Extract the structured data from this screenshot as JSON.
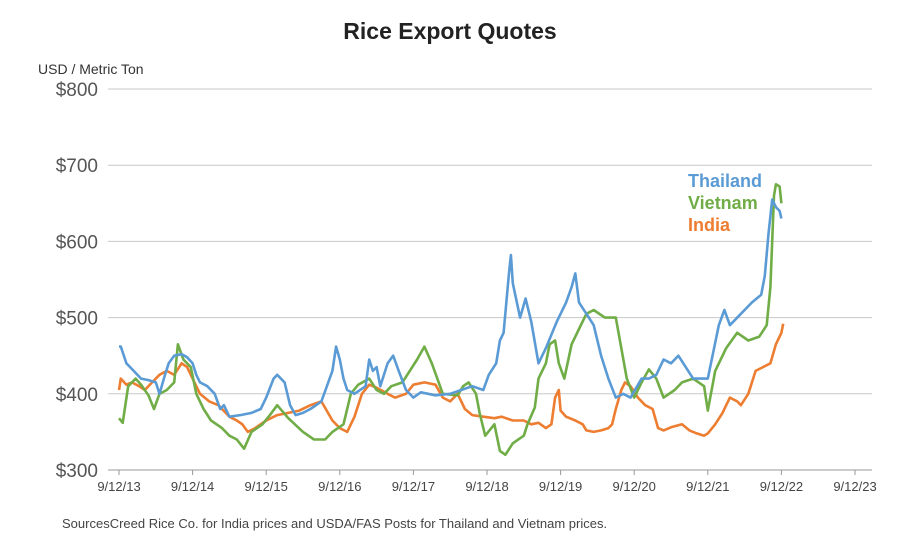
{
  "chart_data": {
    "type": "line",
    "title": "Rice Export Quotes",
    "ylabel": "USD / Metric Ton",
    "xlabel": "",
    "ylim": [
      300,
      800
    ],
    "yticks": [
      300,
      400,
      500,
      600,
      700,
      800
    ],
    "ytick_labels": [
      "$300",
      "$400",
      "$500",
      "$600",
      "$700",
      "$800"
    ],
    "xticks": [
      "9/12/13",
      "9/12/14",
      "9/12/15",
      "9/12/16",
      "9/12/17",
      "9/12/18",
      "9/12/19",
      "9/12/20",
      "9/12/21",
      "9/12/22",
      "9/12/23"
    ],
    "grid": "horizontal",
    "legend_placement": "top-right",
    "series": [
      {
        "name": "Thailand",
        "color": "#5b9bd5",
        "points": [
          [
            0,
            462
          ],
          [
            0.05,
            462
          ],
          [
            0.2,
            440
          ],
          [
            0.4,
            430
          ],
          [
            0.6,
            420
          ],
          [
            0.8,
            418
          ],
          [
            1.0,
            415
          ],
          [
            1.1,
            400
          ],
          [
            1.25,
            425
          ],
          [
            1.35,
            440
          ],
          [
            1.5,
            450
          ],
          [
            1.7,
            452
          ],
          [
            1.85,
            448
          ],
          [
            2.0,
            440
          ],
          [
            2.1,
            425
          ],
          [
            2.2,
            415
          ],
          [
            2.4,
            410
          ],
          [
            2.6,
            400
          ],
          [
            2.75,
            380
          ],
          [
            2.85,
            385
          ],
          [
            3.0,
            370
          ],
          [
            3.3,
            372
          ],
          [
            3.6,
            375
          ],
          [
            3.85,
            380
          ],
          [
            4.0,
            395
          ],
          [
            4.2,
            420
          ],
          [
            4.3,
            425
          ],
          [
            4.5,
            415
          ],
          [
            4.65,
            385
          ],
          [
            4.8,
            372
          ],
          [
            5.0,
            375
          ],
          [
            5.2,
            380
          ],
          [
            5.5,
            390
          ],
          [
            5.8,
            430
          ],
          [
            5.9,
            462
          ],
          [
            6.0,
            445
          ],
          [
            6.1,
            420
          ],
          [
            6.2,
            405
          ],
          [
            6.4,
            400
          ],
          [
            6.7,
            410
          ],
          [
            6.8,
            445
          ],
          [
            6.9,
            430
          ],
          [
            7.0,
            435
          ],
          [
            7.1,
            410
          ],
          [
            7.3,
            440
          ],
          [
            7.45,
            450
          ],
          [
            7.6,
            430
          ],
          [
            7.8,
            405
          ],
          [
            8.0,
            395
          ],
          [
            8.2,
            402
          ],
          [
            8.6,
            398
          ],
          [
            9.0,
            400
          ],
          [
            9.3,
            405
          ],
          [
            9.6,
            410
          ],
          [
            9.9,
            405
          ],
          [
            10.05,
            425
          ],
          [
            10.25,
            440
          ],
          [
            10.35,
            470
          ],
          [
            10.45,
            480
          ],
          [
            10.6,
            560
          ],
          [
            10.65,
            582
          ],
          [
            10.7,
            545
          ],
          [
            10.9,
            500
          ],
          [
            11.05,
            525
          ],
          [
            11.2,
            495
          ],
          [
            11.4,
            440
          ],
          [
            11.6,
            460
          ],
          [
            11.9,
            495
          ],
          [
            12.15,
            520
          ],
          [
            12.3,
            540
          ],
          [
            12.4,
            558
          ],
          [
            12.5,
            520
          ],
          [
            12.7,
            505
          ],
          [
            12.9,
            490
          ],
          [
            13.1,
            450
          ],
          [
            13.3,
            420
          ],
          [
            13.5,
            395
          ],
          [
            13.7,
            400
          ],
          [
            13.9,
            395
          ],
          [
            14.2,
            420
          ],
          [
            14.4,
            420
          ],
          [
            14.6,
            425
          ],
          [
            14.8,
            445
          ],
          [
            15.0,
            440
          ],
          [
            15.2,
            450
          ],
          [
            15.4,
            435
          ],
          [
            15.6,
            420
          ],
          [
            15.9,
            420
          ],
          [
            16.0,
            420
          ],
          [
            16.3,
            490
          ],
          [
            16.45,
            510
          ],
          [
            16.6,
            490
          ],
          [
            16.9,
            505
          ],
          [
            17.2,
            520
          ],
          [
            17.45,
            530
          ],
          [
            17.55,
            555
          ],
          [
            17.65,
            610
          ],
          [
            17.75,
            655
          ],
          [
            17.85,
            645
          ],
          [
            17.95,
            640
          ],
          [
            18.0,
            630
          ]
        ]
      },
      {
        "name": "Vietnam",
        "color": "#70ad47",
        "points": [
          [
            0,
            368
          ],
          [
            0.1,
            362
          ],
          [
            0.25,
            410
          ],
          [
            0.45,
            420
          ],
          [
            0.6,
            412
          ],
          [
            0.8,
            398
          ],
          [
            0.95,
            380
          ],
          [
            1.1,
            400
          ],
          [
            1.3,
            405
          ],
          [
            1.5,
            415
          ],
          [
            1.6,
            465
          ],
          [
            1.75,
            445
          ],
          [
            1.95,
            435
          ],
          [
            2.1,
            400
          ],
          [
            2.3,
            380
          ],
          [
            2.5,
            365
          ],
          [
            2.8,
            355
          ],
          [
            3.0,
            345
          ],
          [
            3.2,
            340
          ],
          [
            3.4,
            328
          ],
          [
            3.6,
            350
          ],
          [
            3.9,
            360
          ],
          [
            4.1,
            372
          ],
          [
            4.3,
            385
          ],
          [
            4.6,
            368
          ],
          [
            5.0,
            350
          ],
          [
            5.3,
            340
          ],
          [
            5.6,
            340
          ],
          [
            5.8,
            350
          ],
          [
            6.1,
            360
          ],
          [
            6.3,
            400
          ],
          [
            6.5,
            412
          ],
          [
            6.8,
            420
          ],
          [
            7.0,
            405
          ],
          [
            7.2,
            400
          ],
          [
            7.4,
            410
          ],
          [
            7.7,
            415
          ],
          [
            8.1,
            445
          ],
          [
            8.3,
            462
          ],
          [
            8.5,
            440
          ],
          [
            8.8,
            400
          ],
          [
            9.2,
            398
          ],
          [
            9.35,
            410
          ],
          [
            9.5,
            415
          ],
          [
            9.7,
            400
          ],
          [
            9.8,
            375
          ],
          [
            9.95,
            345
          ],
          [
            10.2,
            360
          ],
          [
            10.35,
            325
          ],
          [
            10.5,
            320
          ],
          [
            10.7,
            335
          ],
          [
            11.0,
            345
          ],
          [
            11.1,
            360
          ],
          [
            11.3,
            382
          ],
          [
            11.4,
            420
          ],
          [
            11.6,
            440
          ],
          [
            11.7,
            465
          ],
          [
            11.85,
            470
          ],
          [
            11.95,
            440
          ],
          [
            12.1,
            420
          ],
          [
            12.3,
            465
          ],
          [
            12.5,
            485
          ],
          [
            12.7,
            505
          ],
          [
            12.9,
            510
          ],
          [
            13.2,
            500
          ],
          [
            13.5,
            500
          ],
          [
            13.8,
            420
          ],
          [
            14.0,
            395
          ],
          [
            14.2,
            415
          ],
          [
            14.4,
            432
          ],
          [
            14.6,
            420
          ],
          [
            14.8,
            395
          ],
          [
            15.1,
            405
          ],
          [
            15.3,
            415
          ],
          [
            15.6,
            420
          ],
          [
            15.9,
            410
          ],
          [
            16.0,
            378
          ],
          [
            16.2,
            430
          ],
          [
            16.5,
            460
          ],
          [
            16.8,
            480
          ],
          [
            17.1,
            470
          ],
          [
            17.4,
            475
          ],
          [
            17.6,
            490
          ],
          [
            17.7,
            540
          ],
          [
            17.75,
            600
          ],
          [
            17.8,
            660
          ],
          [
            17.85,
            675
          ],
          [
            17.95,
            672
          ],
          [
            18.0,
            650
          ]
        ]
      },
      {
        "name": "India",
        "color": "#ed7d31",
        "points": [
          [
            0,
            405
          ],
          [
            0.05,
            420
          ],
          [
            0.2,
            412
          ],
          [
            0.35,
            415
          ],
          [
            0.55,
            410
          ],
          [
            0.7,
            405
          ],
          [
            0.9,
            415
          ],
          [
            1.1,
            425
          ],
          [
            1.3,
            430
          ],
          [
            1.5,
            425
          ],
          [
            1.7,
            440
          ],
          [
            1.85,
            435
          ],
          [
            2.0,
            420
          ],
          [
            2.2,
            400
          ],
          [
            2.45,
            390
          ],
          [
            2.7,
            385
          ],
          [
            3.0,
            370
          ],
          [
            3.2,
            365
          ],
          [
            3.35,
            360
          ],
          [
            3.5,
            350
          ],
          [
            3.7,
            355
          ],
          [
            4.0,
            365
          ],
          [
            4.3,
            372
          ],
          [
            4.6,
            375
          ],
          [
            4.9,
            378
          ],
          [
            5.2,
            385
          ],
          [
            5.5,
            390
          ],
          [
            5.8,
            365
          ],
          [
            6.0,
            355
          ],
          [
            6.2,
            350
          ],
          [
            6.4,
            370
          ],
          [
            6.6,
            400
          ],
          [
            6.8,
            412
          ],
          [
            7.0,
            408
          ],
          [
            7.3,
            400
          ],
          [
            7.5,
            395
          ],
          [
            7.8,
            400
          ],
          [
            8.0,
            412
          ],
          [
            8.3,
            415
          ],
          [
            8.6,
            412
          ],
          [
            8.8,
            395
          ],
          [
            9.0,
            390
          ],
          [
            9.2,
            400
          ],
          [
            9.4,
            380
          ],
          [
            9.6,
            372
          ],
          [
            9.9,
            370
          ],
          [
            10.2,
            368
          ],
          [
            10.4,
            370
          ],
          [
            10.7,
            365
          ],
          [
            11.0,
            365
          ],
          [
            11.2,
            360
          ],
          [
            11.4,
            362
          ],
          [
            11.6,
            355
          ],
          [
            11.75,
            360
          ],
          [
            11.85,
            395
          ],
          [
            11.95,
            405
          ],
          [
            12.0,
            378
          ],
          [
            12.15,
            370
          ],
          [
            12.4,
            365
          ],
          [
            12.6,
            360
          ],
          [
            12.7,
            352
          ],
          [
            12.9,
            350
          ],
          [
            13.1,
            352
          ],
          [
            13.3,
            355
          ],
          [
            13.4,
            360
          ],
          [
            13.5,
            380
          ],
          [
            13.65,
            405
          ],
          [
            13.75,
            415
          ],
          [
            13.9,
            410
          ],
          [
            14.1,
            395
          ],
          [
            14.3,
            385
          ],
          [
            14.5,
            380
          ],
          [
            14.65,
            355
          ],
          [
            14.8,
            352
          ],
          [
            15.0,
            356
          ],
          [
            15.3,
            360
          ],
          [
            15.5,
            352
          ],
          [
            15.7,
            348
          ],
          [
            15.9,
            345
          ],
          [
            16.0,
            348
          ],
          [
            16.2,
            360
          ],
          [
            16.4,
            375
          ],
          [
            16.6,
            395
          ],
          [
            16.8,
            390
          ],
          [
            16.9,
            385
          ],
          [
            17.1,
            400
          ],
          [
            17.3,
            430
          ],
          [
            17.5,
            435
          ],
          [
            17.7,
            440
          ],
          [
            17.85,
            465
          ],
          [
            18.0,
            480
          ],
          [
            18.05,
            492
          ]
        ]
      }
    ]
  }
}
